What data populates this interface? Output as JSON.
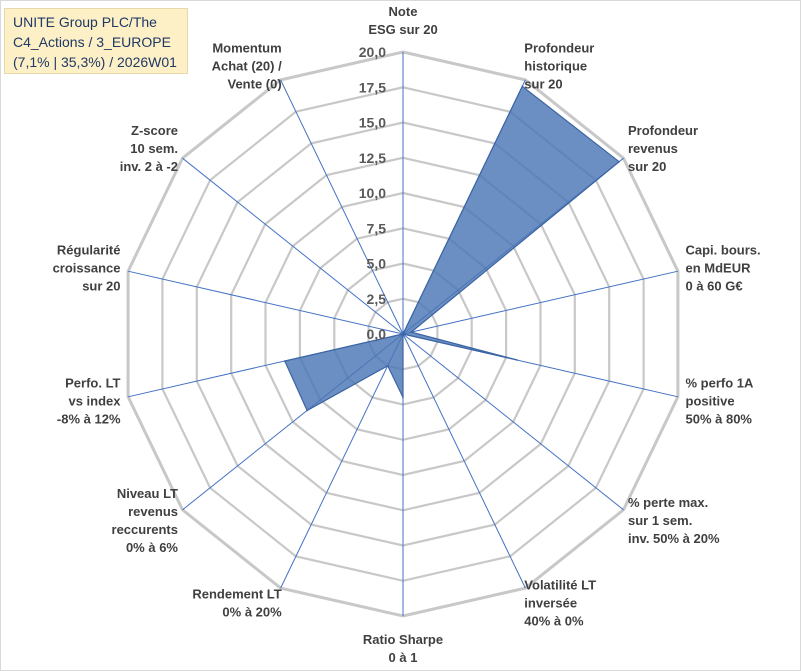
{
  "title": {
    "lines": [
      "UNITE Group PLC/The",
      "C4_Actions / 3_EUROPE",
      "(7,1% | 35,3%) / 2026W01"
    ]
  },
  "colors": {
    "grid": "#c8c8c8",
    "spoke": "#4472c4",
    "fill": "#4a76b5",
    "title_bg": "#fdf0c7",
    "title_text": "#1f3864"
  },
  "chart_data": {
    "type": "radar",
    "range": [
      0,
      20
    ],
    "ticks": [
      "0,0",
      "2,5",
      "5,0",
      "7,5",
      "10,0",
      "12,5",
      "15,0",
      "17,5",
      "20,0"
    ],
    "tick_values": [
      0,
      2.5,
      5,
      7.5,
      10,
      12.5,
      15,
      17.5,
      20
    ],
    "axes": [
      {
        "label": [
          "Note",
          "ESG sur 20"
        ],
        "value": 0
      },
      {
        "label": [
          "Profondeur",
          "historique",
          "sur 20"
        ],
        "value": 19.5
      },
      {
        "label": [
          "Profondeur",
          "revenus",
          "sur 20"
        ],
        "value": 19.6
      },
      {
        "label": [
          "Capi. bours.",
          "en MdEUR",
          "0 à 60 G€"
        ],
        "value": 0.6
      },
      {
        "label": [
          "% perfo 1A",
          "positive",
          "50% à 80%"
        ],
        "value": 8.3
      },
      {
        "label": [
          "% perte max.",
          "sur 1 sem.",
          "inv. 50% à 20%"
        ],
        "value": 0
      },
      {
        "label": [
          "Volatilité LT",
          "inversée",
          "40% à 0%"
        ],
        "value": 0
      },
      {
        "label": [
          "Ratio Sharpe",
          "0 à 1"
        ],
        "value": 4.5
      },
      {
        "label": [
          "Rendement LT",
          "0% à 20%"
        ],
        "value": 2.5
      },
      {
        "label": [
          "Niveau LT",
          "revenus",
          "reccurents",
          "0% à 6%"
        ],
        "value": 8.7
      },
      {
        "label": [
          "Perfo. LT",
          "vs index",
          "-8% à 12%"
        ],
        "value": 8.6
      },
      {
        "label": [
          "Régularité",
          "croissance",
          "sur 20"
        ],
        "value": 0
      },
      {
        "label": [
          "Z-score",
          "10 sem.",
          "inv. 2 à -2"
        ],
        "value": 0
      },
      {
        "label": [
          "Momentum",
          "Achat (20) /",
          "Vente (0)"
        ],
        "value": 0
      }
    ]
  }
}
